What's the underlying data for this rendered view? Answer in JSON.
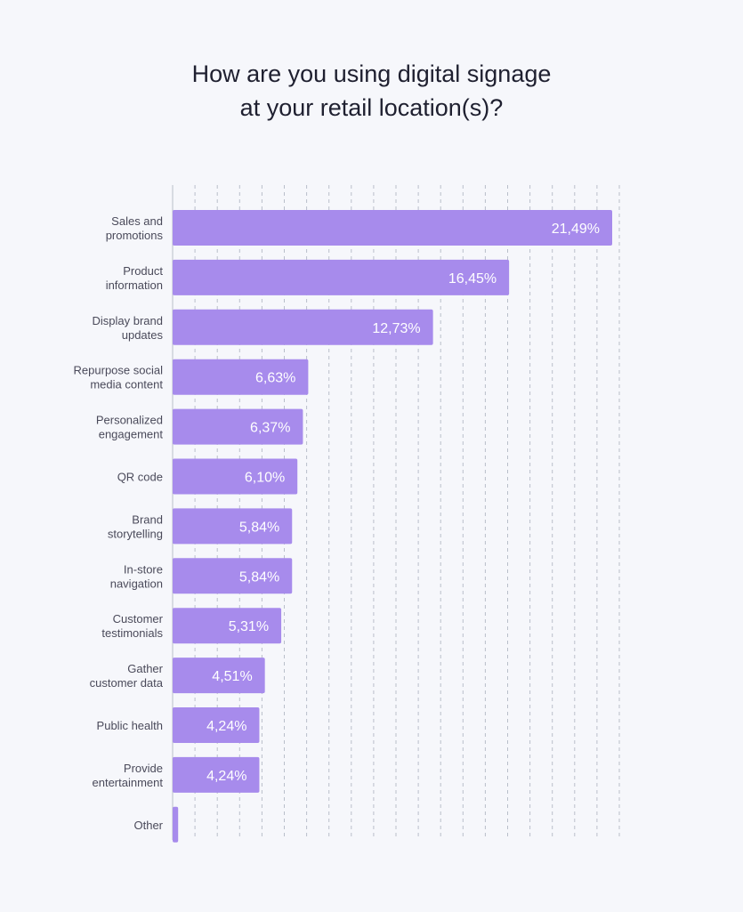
{
  "chart_data": {
    "type": "bar",
    "orientation": "horizontal",
    "title_lines": [
      "How are you using digital signage",
      "at your retail location(s)?"
    ],
    "categories": [
      [
        "Sales and",
        "promotions"
      ],
      [
        "Product",
        "information"
      ],
      [
        "Display brand",
        "updates"
      ],
      [
        "Repurpose social",
        "media content"
      ],
      [
        "Personalized",
        "engagement"
      ],
      [
        "QR code"
      ],
      [
        "Brand",
        "storytelling"
      ],
      [
        "In-store",
        "navigation"
      ],
      [
        "Customer",
        "testimonials"
      ],
      [
        "Gather",
        "customer data"
      ],
      [
        "Public health"
      ],
      [
        "Provide",
        "entertainment"
      ],
      [
        "Other"
      ]
    ],
    "values": [
      21.49,
      16.45,
      12.73,
      6.63,
      6.37,
      6.1,
      5.84,
      5.84,
      5.31,
      4.51,
      4.24,
      4.24,
      0.27
    ],
    "value_labels": [
      "21,49%",
      "16,45%",
      "12,73%",
      "6,63%",
      "6,37%",
      "6,10%",
      "5,84%",
      "5,84%",
      "5,31%",
      "4,51%",
      "4,24%",
      "4,24%",
      ""
    ],
    "xlim": [
      0,
      21.8
    ],
    "grid": true,
    "bar_color": "#a78bec",
    "label_color": "#ffffff",
    "category_color": "#4a4a5a",
    "grid_color": "#b9bfca"
  }
}
